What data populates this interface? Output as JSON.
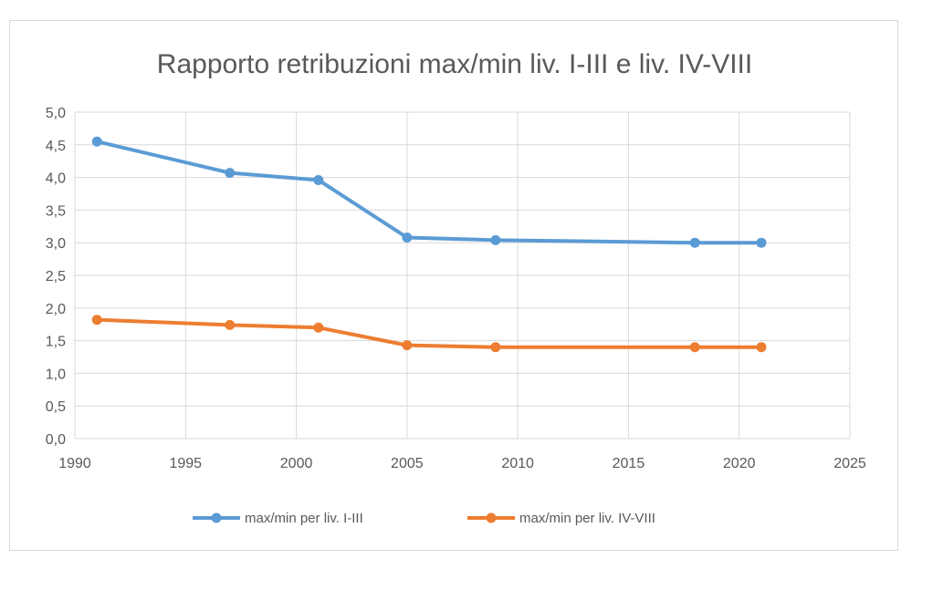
{
  "chart_data": {
    "type": "scatter",
    "title": "Rapporto retribuzioni max/min liv. I-III e liv. IV-VIII",
    "xlabel": "",
    "ylabel": "",
    "xlim": [
      1990,
      2025
    ],
    "ylim": [
      0,
      5
    ],
    "x_ticks": [
      1990,
      1995,
      2000,
      2005,
      2010,
      2015,
      2020,
      2025
    ],
    "x_tick_labels": [
      "1990",
      "1995",
      "2000",
      "2005",
      "2010",
      "2015",
      "2020",
      "2025"
    ],
    "y_ticks": [
      0,
      0.5,
      1,
      1.5,
      2,
      2.5,
      3,
      3.5,
      4,
      4.5,
      5
    ],
    "y_tick_labels": [
      "0,0",
      "0,5",
      "1,0",
      "1,5",
      "2,0",
      "2,5",
      "3,0",
      "3,5",
      "4,0",
      "4,5",
      "5,0"
    ],
    "grid": true,
    "legend_position": "bottom",
    "series": [
      {
        "name": "max/min per liv. I-III",
        "color": "#5b9bd5",
        "x": [
          1991,
          1997,
          2001,
          2005,
          2009,
          2018,
          2021
        ],
        "y": [
          4.55,
          4.07,
          3.96,
          3.08,
          3.04,
          3.0,
          3.0
        ]
      },
      {
        "name": "max/min per liv. IV-VIII",
        "color": "#ed7d31",
        "x": [
          1991,
          1997,
          2001,
          2005,
          2009,
          2018,
          2021
        ],
        "y": [
          1.82,
          1.74,
          1.7,
          1.43,
          1.4,
          1.4,
          1.4
        ]
      }
    ]
  }
}
